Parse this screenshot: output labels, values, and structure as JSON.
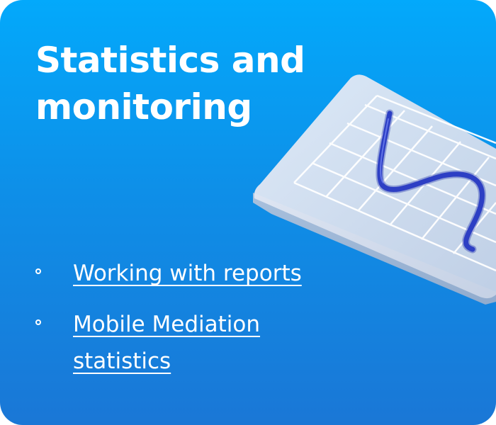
{
  "card": {
    "title": "Statistics and monitoring",
    "links": [
      {
        "label": "Working with reports"
      },
      {
        "label": "Mobile Mediation statistics"
      }
    ]
  },
  "colors": {
    "background_top": "#03a9fb",
    "background_bottom": "#1a77d6",
    "text": "#ffffff",
    "chart_line": "#2d3fc4"
  },
  "icons": [
    "bullet-circle-icon",
    "chart-grid-illustration"
  ]
}
